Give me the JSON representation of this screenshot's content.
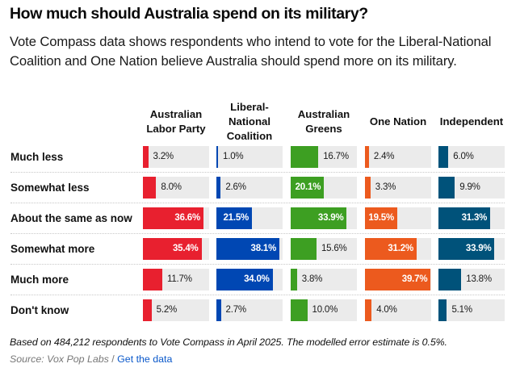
{
  "header": {
    "title": "How much should Australia spend on its military?",
    "subtitle": "Vote Compass data shows respondents who intend to vote for the Liberal-National Coalition and One Nation believe Australia should spend more on its military."
  },
  "chart_data": {
    "type": "bar",
    "title": "How much should Australia spend on its military?",
    "xlabel": "",
    "ylabel": "",
    "value_unit": "%",
    "xlim": [
      0,
      40
    ],
    "categories": [
      "Much less",
      "Somewhat less",
      "About the same as now",
      "Somewhat more",
      "Much more",
      "Don't know"
    ],
    "series": [
      {
        "name": "Australian Labor Party",
        "color": "#e8202f",
        "values": [
          3.2,
          8.0,
          36.6,
          35.4,
          11.7,
          5.2
        ]
      },
      {
        "name": "Liberal-National Coalition",
        "color": "#0047b3",
        "values": [
          1.0,
          2.6,
          21.5,
          38.1,
          34.0,
          2.7
        ]
      },
      {
        "name": "Australian Greens",
        "color": "#3d9f22",
        "values": [
          16.7,
          20.1,
          33.9,
          15.6,
          3.8,
          10.0
        ]
      },
      {
        "name": "One Nation",
        "color": "#ec5a1e",
        "values": [
          2.4,
          3.3,
          19.5,
          31.2,
          39.7,
          4.0
        ]
      },
      {
        "name": "Independent",
        "color": "#00527a",
        "values": [
          6.0,
          9.9,
          31.3,
          33.9,
          13.8,
          5.1
        ]
      }
    ],
    "track_color": "#ebebeb",
    "grid": false,
    "legend": "none"
  },
  "footer": {
    "note": "Based on 484,212 respondents to Vote Compass in April 2025. The modelled error estimate is 0.5%.",
    "source_label": "Source: Vox Pop Labs",
    "separator": " / ",
    "link_label": "Get the data"
  }
}
